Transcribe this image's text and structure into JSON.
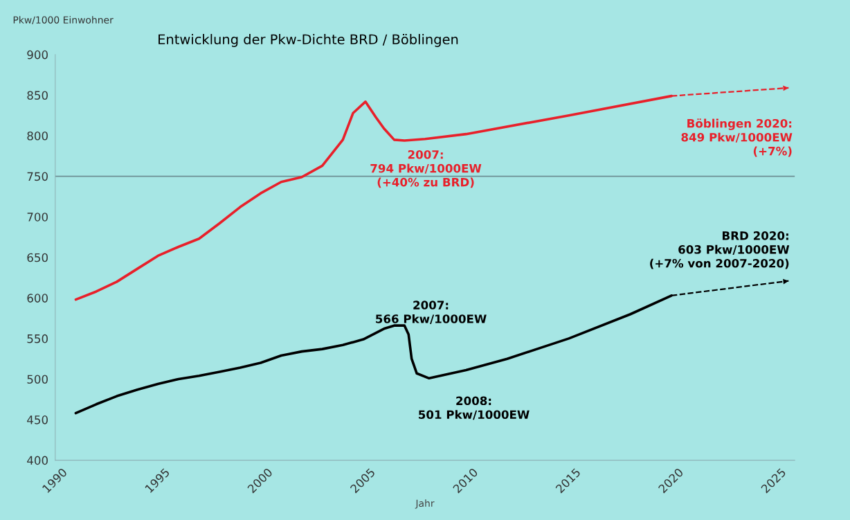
{
  "chart_data": {
    "type": "line",
    "title": "Entwicklung der Pkw-Dichte BRD / Böblingen",
    "xlabel": "Jahr",
    "ylabel": "Pkw/1000 Einwohner",
    "xlim": [
      1990,
      2026
    ],
    "xticks": [
      1990,
      1995,
      2000,
      2005,
      2010,
      2015,
      2020,
      2025
    ],
    "ylim": [
      400,
      900
    ],
    "yticks": [
      400,
      450,
      500,
      550,
      600,
      650,
      700,
      750,
      800,
      850,
      900
    ],
    "grid": false,
    "legend": false,
    "marker": "none",
    "series": [
      {
        "color": "#e8202a",
        "line_style": "solid",
        "x": [
          1991,
          1992,
          1993,
          1994,
          1995,
          1996,
          1997,
          1998,
          1999,
          2000,
          2001,
          2002,
          2003,
          2004,
          2004.5,
          2005.1,
          2005.6,
          2006,
          2006.5,
          2007,
          2008,
          2010,
          2015,
          2020
        ],
        "values": [
          598,
          608,
          620,
          636,
          652,
          663,
          673,
          692,
          712,
          729,
          743,
          749,
          763,
          795,
          828,
          842,
          823,
          809,
          795,
          794,
          796,
          802,
          825,
          849
        ]
      },
      {
        "color": "#e8202a",
        "line_style": "dashed",
        "marker": "triangle",
        "x": [
          2020,
          2025.7
        ],
        "values": [
          849,
          859
        ]
      },
      {
        "color": "#000000",
        "line_style": "solid",
        "x": [
          1991,
          1992,
          1993,
          1994,
          1995,
          1996,
          1997,
          1998,
          1999,
          2000,
          2001,
          2002,
          2003,
          2004,
          2005,
          2006,
          2006.5,
          2007,
          2007.2,
          2007.35,
          2007.6,
          2008.2,
          2010,
          2012,
          2015,
          2018,
          2020
        ],
        "values": [
          458,
          469,
          479,
          487,
          494,
          500,
          504,
          509,
          514,
          520,
          529,
          534,
          537,
          542,
          549,
          562,
          566,
          566,
          555,
          525,
          507,
          501,
          511,
          525,
          550,
          580,
          603
        ]
      },
      {
        "color": "#000000",
        "line_style": "dashed",
        "marker": "triangle",
        "x": [
          2020,
          2025.7
        ],
        "values": [
          603,
          621
        ]
      }
    ],
    "ref_lines": [
      {
        "axis": "y",
        "value": 750,
        "color": "#6e8f94",
        "line_style": "solid"
      }
    ],
    "annotations": [
      "2007:\n794 Pkw/1000EW\n(+40% zu BRD)",
      "Böblingen 2020:\n849 Pkw/1000EW\n(+7%)",
      "BRD 2020:\n603 Pkw/1000EW\n(+7% von 2007-2020)",
      "2007:\n566 Pkw/1000EW",
      "2008:\n501 Pkw/1000EW"
    ]
  }
}
